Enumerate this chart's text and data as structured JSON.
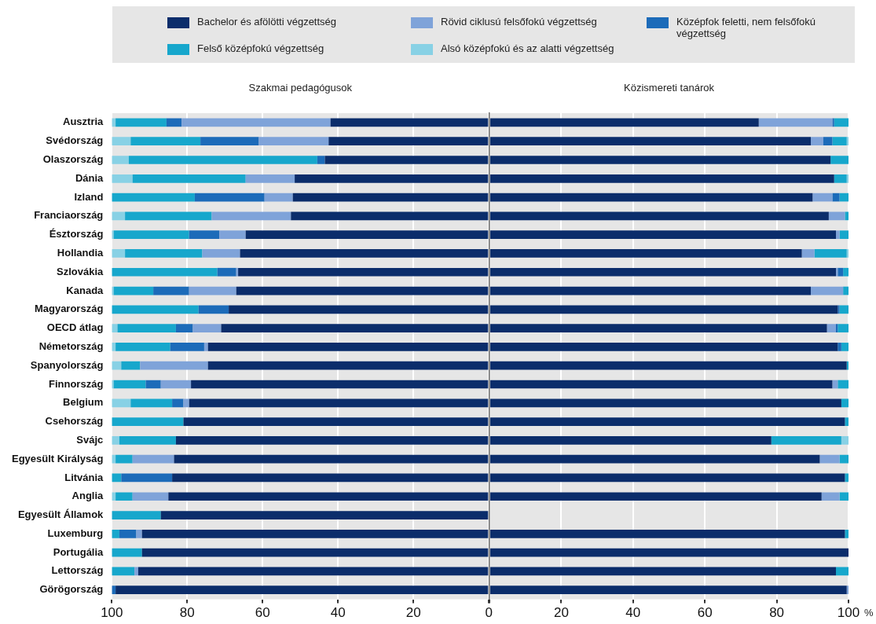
{
  "chart_data": [
    {
      "type": "bar",
      "orientation": "horizontal",
      "stacked": true,
      "title": "Szakmai pedagógusok",
      "legend": "top",
      "grid": "x",
      "categories": [
        "Ausztria",
        "Svédország",
        "Olaszország",
        "Dánia",
        "Izland",
        "Franciaország",
        "Észtország",
        "Hollandia",
        "Szlovákia",
        "Kanada",
        "Magyarország",
        "OECD átlag",
        "Németország",
        "Spanyolország",
        "Finnország",
        "Belgium",
        "Csehország",
        "Svájc",
        "Egyesült Királyság",
        "Litvánia",
        "Anglia",
        "Egyesült Államok",
        "Luxemburg",
        "Portugália",
        "Lettország",
        "Görögország"
      ],
      "xlim": [
        100,
        0
      ],
      "xticks": [
        100,
        80,
        60,
        40,
        20,
        0
      ],
      "series": [
        {
          "name": "Bachelor és afölötti végzettség",
          "color": "#0b2d6b",
          "values": [
            42,
            42.5,
            43.5,
            51.5,
            52,
            52.5,
            64.5,
            66,
            66.5,
            67,
            69,
            71,
            74.5,
            74.5,
            79,
            79.5,
            81,
            83,
            83.5,
            84,
            85,
            87,
            92,
            92,
            93,
            99
          ]
        },
        {
          "name": "Rövid ciklusú felsőfokú végzettség",
          "color": "#7fa3d9",
          "values": [
            39.5,
            18.5,
            null,
            13,
            7.5,
            21,
            7,
            10,
            0.5,
            12.5,
            null,
            7.5,
            1,
            18,
            8,
            1.5,
            null,
            null,
            11,
            null,
            9.5,
            null,
            1.5,
            null,
            1,
            null
          ]
        },
        {
          "name": "Középfok feletti, nem felsőfokú végzettség",
          "color": "#1c6bb9",
          "values": [
            4,
            15.5,
            2,
            null,
            18.5,
            null,
            8,
            null,
            5,
            9.5,
            8,
            4.5,
            9,
            null,
            4,
            3,
            null,
            null,
            null,
            13.5,
            null,
            null,
            4.5,
            null,
            null,
            1
          ]
        },
        {
          "name": "Felső középfokú végzettség",
          "color": "#17a7cc",
          "values": [
            13.5,
            18.5,
            50,
            30,
            22,
            23,
            20,
            20.5,
            28,
            10.5,
            23,
            15.5,
            14.5,
            5,
            8.5,
            11,
            19,
            15,
            4.5,
            2.5,
            4.5,
            13,
            2,
            8,
            6,
            null
          ]
        },
        {
          "name": "Alsó középfokú és az alatti végzettség",
          "color": "#88d1e5",
          "values": [
            1,
            5,
            4.5,
            5.5,
            null,
            3.5,
            0.5,
            3.5,
            null,
            0.5,
            null,
            1.5,
            1,
            2.5,
            0.5,
            5,
            null,
            2,
            1,
            null,
            1,
            null,
            null,
            null,
            null,
            null
          ]
        }
      ]
    },
    {
      "type": "bar",
      "orientation": "horizontal",
      "stacked": true,
      "title": "Közismereti tanárok",
      "xlabel": "%",
      "grid": "x",
      "tick_labels": "x",
      "categories": [
        null,
        null,
        null,
        null,
        null,
        null,
        null,
        null,
        null,
        null,
        null,
        null,
        null,
        null,
        null,
        null,
        null,
        null,
        null,
        null,
        null,
        null,
        null,
        null,
        null,
        null
      ],
      "xlim": [
        0,
        100
      ],
      "xticks": [
        {
          "value": 0,
          "label": null
        },
        20,
        40,
        60,
        80,
        100
      ],
      "series": [
        {
          "color": "#0b2d6b",
          "values": [
            75,
            89.5,
            95,
            96,
            90,
            94.5,
            96.5,
            87,
            96.5,
            89.5,
            97,
            94,
            97,
            99.5,
            95.5,
            98,
            99,
            78.5,
            92,
            99,
            92.5,
            null,
            99,
            100,
            96.5,
            99.5
          ]
        },
        {
          "color": "#7fa3d9",
          "values": [
            20.5,
            3.5,
            null,
            null,
            5.5,
            4.5,
            1,
            3.5,
            0.5,
            9,
            null,
            2.5,
            null,
            null,
            1.5,
            null,
            null,
            null,
            5.5,
            null,
            5,
            null,
            null,
            null,
            null,
            0.5
          ]
        },
        {
          "color": "#1c6bb9",
          "values": [
            0.5,
            2.5,
            null,
            null,
            2,
            null,
            null,
            null,
            1.5,
            null,
            0.5,
            0.5,
            1,
            null,
            null,
            null,
            null,
            null,
            null,
            null,
            null,
            null,
            null,
            null,
            null,
            null
          ]
        },
        {
          "color": "#17a7cc",
          "values": [
            4,
            4,
            5,
            3.5,
            2.5,
            1,
            2.5,
            9,
            1.5,
            1.5,
            2.5,
            3,
            2,
            0.5,
            3,
            2,
            1,
            19.5,
            2.5,
            1,
            2.5,
            null,
            1,
            null,
            3.5,
            null
          ]
        },
        {
          "color": "#88d1e5",
          "values": [
            null,
            0.5,
            null,
            0.5,
            null,
            null,
            null,
            0.5,
            null,
            null,
            null,
            null,
            null,
            null,
            null,
            null,
            null,
            2,
            null,
            null,
            null,
            null,
            null,
            null,
            null,
            null
          ]
        }
      ]
    }
  ]
}
